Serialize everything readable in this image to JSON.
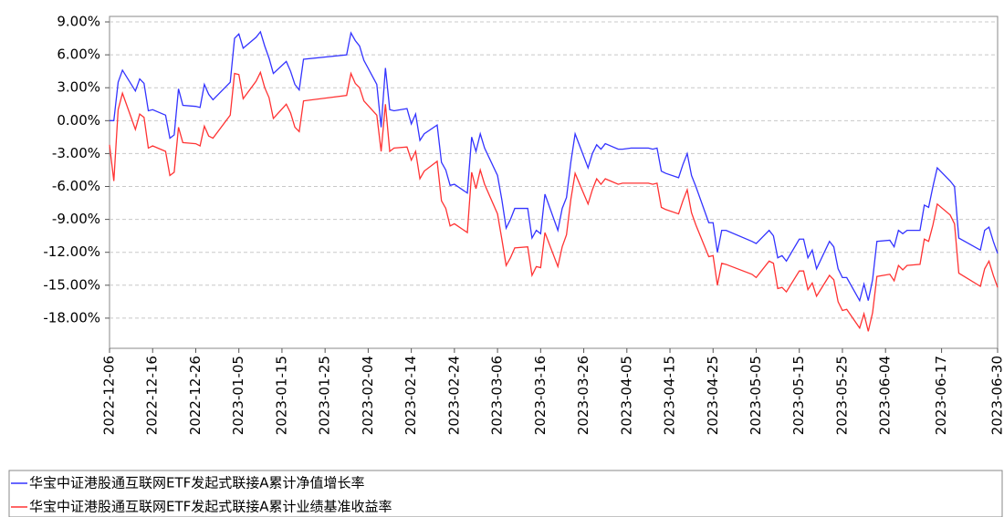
{
  "chart_data": {
    "type": "line",
    "x": [
      "2022-12-06",
      "2022-12-07",
      "2022-12-08",
      "2022-12-09",
      "2022-12-12",
      "2022-12-13",
      "2022-12-14",
      "2022-12-15",
      "2022-12-16",
      "2022-12-19",
      "2022-12-20",
      "2022-12-21",
      "2022-12-22",
      "2022-12-23",
      "2022-12-26",
      "2022-12-27",
      "2022-12-28",
      "2022-12-29",
      "2022-12-30",
      "2023-01-03",
      "2023-01-04",
      "2023-01-05",
      "2023-01-06",
      "2023-01-09",
      "2023-01-10",
      "2023-01-11",
      "2023-01-12",
      "2023-01-13",
      "2023-01-16",
      "2023-01-17",
      "2023-01-18",
      "2023-01-19",
      "2023-01-20",
      "2023-01-30",
      "2023-01-31",
      "2023-02-01",
      "2023-02-02",
      "2023-02-03",
      "2023-02-06",
      "2023-02-07",
      "2023-02-08",
      "2023-02-09",
      "2023-02-10",
      "2023-02-13",
      "2023-02-14",
      "2023-02-15",
      "2023-02-16",
      "2023-02-17",
      "2023-02-20",
      "2023-02-21",
      "2023-02-22",
      "2023-02-23",
      "2023-02-24",
      "2023-02-27",
      "2023-02-28",
      "2023-03-01",
      "2023-03-02",
      "2023-03-03",
      "2023-03-06",
      "2023-03-07",
      "2023-03-08",
      "2023-03-09",
      "2023-03-10",
      "2023-03-13",
      "2023-03-14",
      "2023-03-15",
      "2023-03-16",
      "2023-03-17",
      "2023-03-20",
      "2023-03-21",
      "2023-03-22",
      "2023-03-23",
      "2023-03-24",
      "2023-03-27",
      "2023-03-28",
      "2023-03-29",
      "2023-03-30",
      "2023-03-31",
      "2023-04-03",
      "2023-04-04",
      "2023-04-06",
      "2023-04-07",
      "2023-04-10",
      "2023-04-11",
      "2023-04-12",
      "2023-04-13",
      "2023-04-14",
      "2023-04-17",
      "2023-04-18",
      "2023-04-19",
      "2023-04-20",
      "2023-04-21",
      "2023-04-24",
      "2023-04-25",
      "2023-04-26",
      "2023-04-27",
      "2023-04-28",
      "2023-05-04",
      "2023-05-05",
      "2023-05-08",
      "2023-05-09",
      "2023-05-10",
      "2023-05-11",
      "2023-05-12",
      "2023-05-15",
      "2023-05-16",
      "2023-05-17",
      "2023-05-18",
      "2023-05-19",
      "2023-05-22",
      "2023-05-23",
      "2023-05-24",
      "2023-05-25",
      "2023-05-26",
      "2023-05-29",
      "2023-05-30",
      "2023-05-31",
      "2023-06-01",
      "2023-06-02",
      "2023-06-05",
      "2023-06-06",
      "2023-06-07",
      "2023-06-08",
      "2023-06-09",
      "2023-06-12",
      "2023-06-13",
      "2023-06-14",
      "2023-06-15",
      "2023-06-16",
      "2023-06-19",
      "2023-06-20",
      "2023-06-21",
      "2023-06-26",
      "2023-06-27",
      "2023-06-28",
      "2023-06-29",
      "2023-06-30"
    ],
    "series": [
      {
        "name": "华宝中证港股通互联网ETF发起式联接A累计净值增长率",
        "color": "#3333ff",
        "values": [
          0.0,
          0.0,
          3.5,
          4.6,
          2.7,
          3.8,
          3.4,
          0.9,
          1.0,
          0.5,
          -1.6,
          -1.3,
          2.9,
          1.4,
          1.3,
          1.2,
          3.3,
          2.4,
          1.9,
          3.5,
          7.5,
          7.9,
          6.6,
          7.6,
          8.1,
          6.8,
          5.7,
          4.3,
          5.4,
          4.5,
          3.3,
          2.8,
          5.6,
          6.0,
          8.0,
          7.3,
          6.8,
          5.5,
          3.3,
          -0.6,
          4.8,
          1.0,
          0.9,
          1.1,
          -0.3,
          0.6,
          -1.8,
          -1.2,
          -0.4,
          -3.8,
          -4.5,
          -5.9,
          -5.8,
          -6.6,
          -1.5,
          -2.8,
          -1.2,
          -2.5,
          -5.0,
          -7.2,
          -9.8,
          -9.0,
          -8.0,
          -8.0,
          -10.7,
          -10.0,
          -10.3,
          -6.7,
          -10.0,
          -8.0,
          -7.0,
          -3.8,
          -1.2,
          -4.3,
          -3.0,
          -2.2,
          -2.6,
          -2.1,
          -2.6,
          -2.6,
          -2.5,
          -2.5,
          -2.5,
          -2.6,
          -2.5,
          -4.6,
          -4.8,
          -5.2,
          -4.0,
          -3.0,
          -5.0,
          -6.0,
          -9.3,
          -9.3,
          -12.0,
          -10.0,
          -10.0,
          -11.0,
          -11.2,
          -10.0,
          -10.5,
          -12.5,
          -12.3,
          -12.8,
          -10.8,
          -10.8,
          -12.5,
          -11.8,
          -13.5,
          -11.0,
          -11.5,
          -13.5,
          -14.3,
          -14.3,
          -16.4,
          -14.9,
          -16.4,
          -14.5,
          -11.0,
          -10.9,
          -11.5,
          -10.0,
          -10.3,
          -10.0,
          -10.0,
          -7.7,
          -7.9,
          -6.0,
          -4.3,
          -5.5,
          -6.0,
          -10.7,
          -11.8,
          -10.0,
          -9.7,
          -11.0,
          -12.1
        ]
      },
      {
        "name": "华宝中证港股通互联网ETF发起式联接A累计业绩基准收益率",
        "color": "#ff3333",
        "values": [
          -2.2,
          -5.5,
          1.0,
          2.5,
          -0.8,
          0.6,
          0.3,
          -2.5,
          -2.3,
          -2.8,
          -5.0,
          -4.7,
          -0.6,
          -2.0,
          -2.1,
          -2.3,
          -0.5,
          -1.4,
          -1.6,
          0.5,
          4.3,
          4.2,
          2.0,
          3.6,
          4.4,
          3.0,
          2.1,
          0.2,
          1.5,
          0.7,
          -0.6,
          -1.0,
          1.8,
          2.3,
          4.3,
          3.4,
          3.0,
          1.8,
          0.5,
          -2.8,
          1.5,
          -2.8,
          -2.5,
          -2.4,
          -3.6,
          -2.8,
          -5.3,
          -4.6,
          -3.7,
          -7.3,
          -8.0,
          -9.6,
          -9.4,
          -10.2,
          -4.7,
          -6.2,
          -4.5,
          -5.8,
          -8.5,
          -10.8,
          -13.2,
          -12.5,
          -11.6,
          -11.5,
          -14.1,
          -13.3,
          -13.4,
          -10.2,
          -13.3,
          -11.5,
          -10.4,
          -7.2,
          -4.8,
          -7.6,
          -6.3,
          -5.3,
          -5.8,
          -5.3,
          -5.8,
          -5.7,
          -5.7,
          -5.7,
          -5.7,
          -5.8,
          -5.7,
          -7.9,
          -8.1,
          -8.5,
          -7.3,
          -6.3,
          -8.4,
          -9.5,
          -12.4,
          -12.3,
          -15.0,
          -13.0,
          -13.1,
          -14.0,
          -14.3,
          -12.8,
          -13.0,
          -15.3,
          -15.2,
          -15.6,
          -13.7,
          -13.7,
          -15.4,
          -14.8,
          -16.0,
          -14.1,
          -14.5,
          -16.5,
          -17.3,
          -17.2,
          -18.9,
          -17.6,
          -19.2,
          -17.5,
          -14.2,
          -14.0,
          -14.6,
          -13.2,
          -13.6,
          -13.2,
          -13.1,
          -10.8,
          -11.0,
          -9.5,
          -7.6,
          -8.6,
          -9.4,
          -13.9,
          -15.1,
          -13.5,
          -12.8,
          -14.1,
          -15.2
        ]
      }
    ],
    "xlim": [
      "2022-12-06",
      "2023-06-30"
    ],
    "xticks": [
      "2022-12-06",
      "2022-12-16",
      "2022-12-26",
      "2023-01-05",
      "2023-01-15",
      "2023-01-25",
      "2023-02-04",
      "2023-02-14",
      "2023-02-24",
      "2023-03-06",
      "2023-03-16",
      "2023-03-26",
      "2023-04-05",
      "2023-04-15",
      "2023-04-25",
      "2023-05-05",
      "2023-05-15",
      "2023-05-25",
      "2023-06-04",
      "2023-06-17",
      "2023-06-30"
    ],
    "ylim": [
      -20.75,
      9.5
    ],
    "yticks": [
      {
        "value": 9,
        "label": "9.00%"
      },
      {
        "value": 6,
        "label": "6.00%"
      },
      {
        "value": 3,
        "label": "3.00%"
      },
      {
        "value": 0,
        "label": "0.00%"
      },
      {
        "value": -3,
        "label": "-3.00%"
      },
      {
        "value": -6,
        "label": "-6.00%"
      },
      {
        "value": -9,
        "label": "-9.00%"
      },
      {
        "value": -12,
        "label": "-12.00%"
      },
      {
        "value": -15,
        "label": "-15.00%"
      },
      {
        "value": -18,
        "label": "-18.00%"
      }
    ],
    "grid": true
  }
}
